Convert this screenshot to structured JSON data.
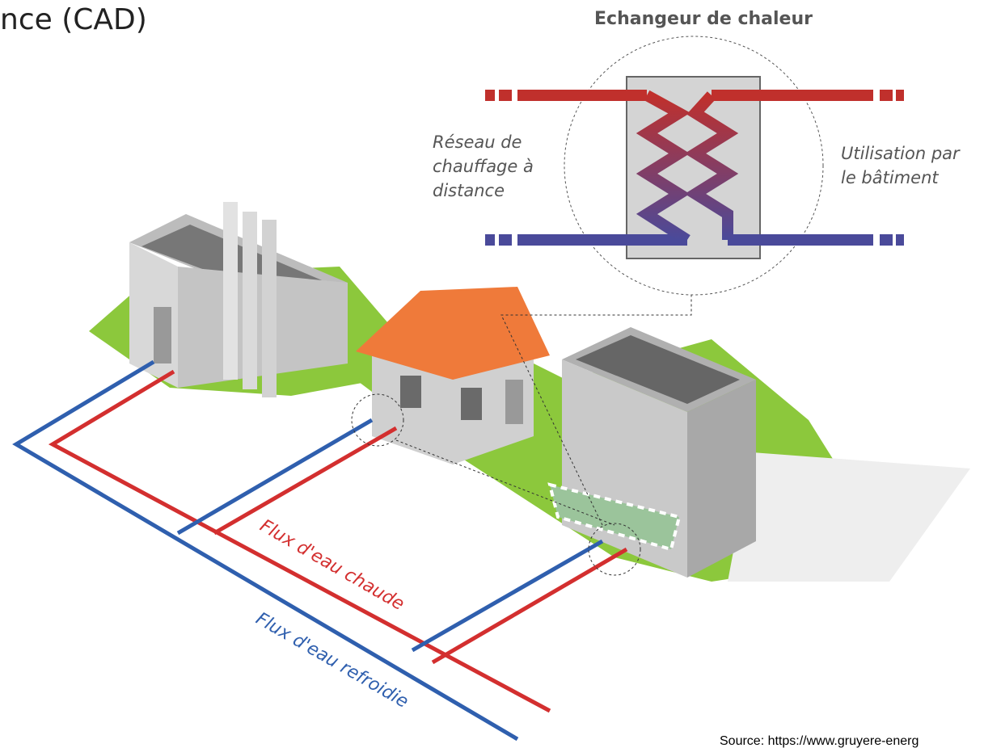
{
  "header": {
    "title": "nce (CAD)"
  },
  "exchanger": {
    "title": "Echangeur de chaleur",
    "left_label": [
      "Réseau de",
      "chauffage à",
      "distance"
    ],
    "right_label": [
      "Utilisation par",
      "le bâtiment"
    ]
  },
  "flows": {
    "hot": "Flux d'eau chaude",
    "cold": "Flux d'eau refroidie"
  },
  "source": "Source: https://www.gruyere-energ"
}
